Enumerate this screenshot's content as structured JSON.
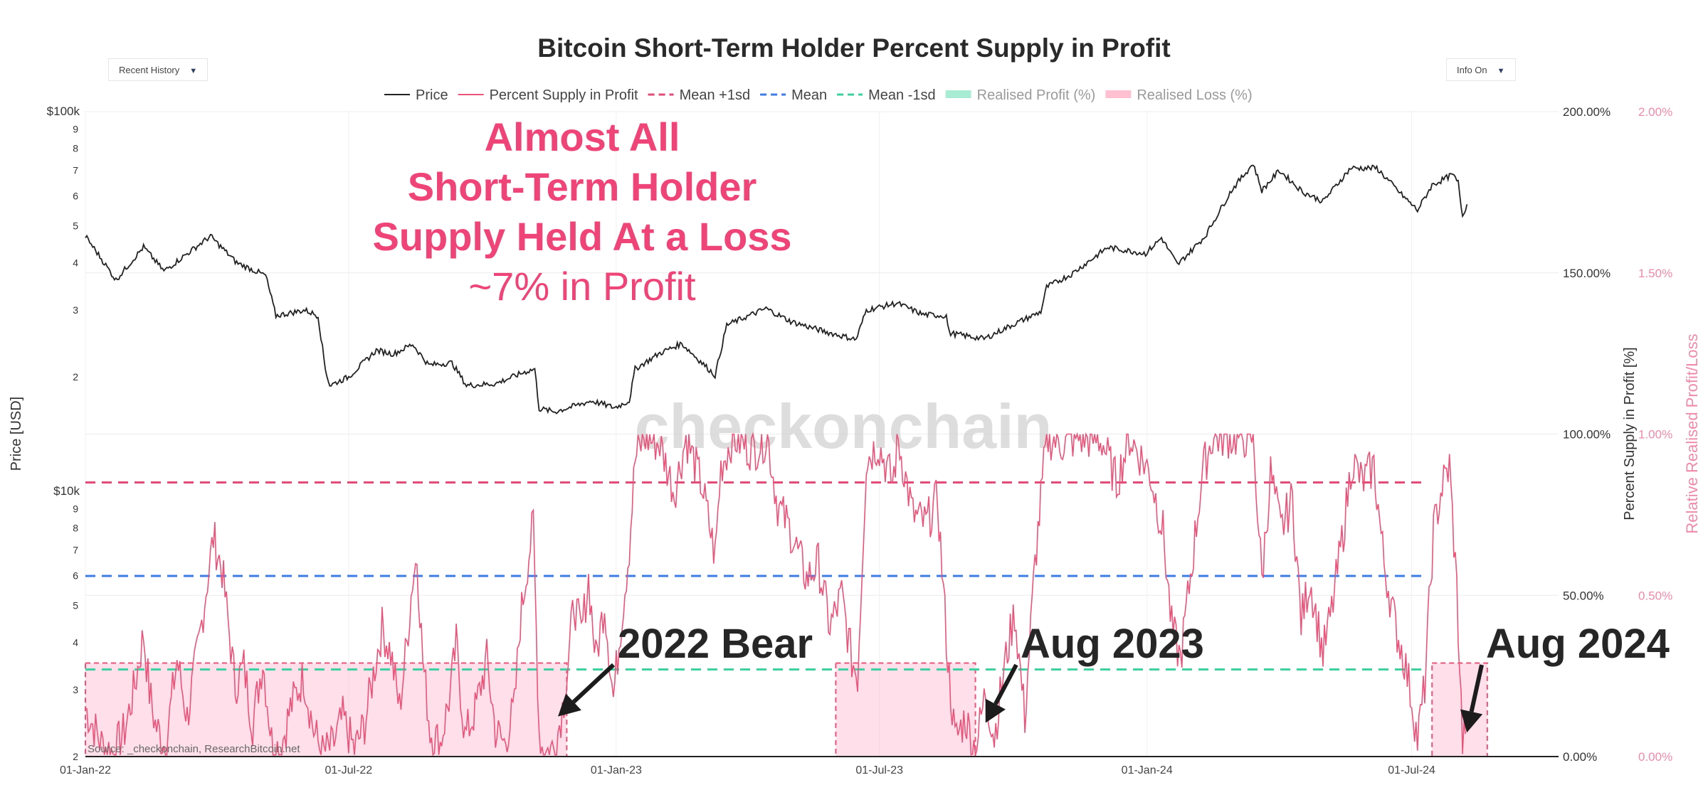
{
  "controls": {
    "left_dropdown": "Recent History",
    "right_dropdown": "Info On",
    "caret": "▼"
  },
  "source": "Source: _checkonchain, ResearchBitcoin.net",
  "watermark": "checkonchain",
  "annotations": {
    "headline": [
      "Almost All",
      "Short-Term Holder",
      "Supply Held At a Loss"
    ],
    "subline": "~7% in Profit",
    "labels": [
      {
        "text": "2022 Bear",
        "date": "2022-11-20",
        "value": 12
      },
      {
        "text": "Aug 2023",
        "date": "2023-09-10",
        "value": 10
      },
      {
        "text": "Aug 2024",
        "date": "2024-08-06",
        "value": 7
      }
    ]
  },
  "colors": {
    "price": "#222222",
    "profit": "#e8547a",
    "mean_plus": "#e24a78",
    "mean": "#3d7be6",
    "mean_minus": "#3fd0a0",
    "realised_profit": "#a9ecd4",
    "realised_loss": "#ffc1d2",
    "loss_box_fill": "rgba(255,160,190,0.32)",
    "headline": "#ee4477",
    "right_axis2": "#f08aaa"
  },
  "chart_data": {
    "type": "line",
    "title": "Bitcoin Short-Term Holder Percent Supply in Profit",
    "legend": [
      "Price",
      "Percent Supply in Profit",
      "Mean +1sd",
      "Mean",
      "Mean -1sd",
      "Realised Profit (%)",
      "Realised Loss (%)"
    ],
    "legend_position": "top-center",
    "x_ticks": [
      "01-Jan-22",
      "01-Jul-22",
      "01-Jan-23",
      "01-Jul-23",
      "01-Jan-24",
      "01-Jul-24"
    ],
    "x_range": [
      "2022-01-01",
      "2024-10-10"
    ],
    "y_left": {
      "label": "Price [USD]",
      "scale": "log",
      "range": [
        2000,
        100000
      ],
      "ticks": [
        {
          "v": 2000,
          "t": "2"
        },
        {
          "v": 3000,
          "t": "3"
        },
        {
          "v": 4000,
          "t": "4"
        },
        {
          "v": 5000,
          "t": "5"
        },
        {
          "v": 6000,
          "t": "6"
        },
        {
          "v": 7000,
          "t": "7"
        },
        {
          "v": 8000,
          "t": "8"
        },
        {
          "v": 9000,
          "t": "9"
        },
        {
          "v": 10000,
          "t": "$10k"
        },
        {
          "v": 20000,
          "t": "2"
        },
        {
          "v": 30000,
          "t": "3"
        },
        {
          "v": 40000,
          "t": "4"
        },
        {
          "v": 50000,
          "t": "5"
        },
        {
          "v": 60000,
          "t": "6"
        },
        {
          "v": 70000,
          "t": "7"
        },
        {
          "v": 80000,
          "t": "8"
        },
        {
          "v": 90000,
          "t": "9"
        },
        {
          "v": 100000,
          "t": "$100k"
        }
      ]
    },
    "y_right": {
      "label": "Percent Supply in Profit [%]",
      "range": [
        0,
        200
      ],
      "ticks": [
        "0.00%",
        "50.00%",
        "100.00%",
        "150.00%",
        "200.00%"
      ]
    },
    "y_right2": {
      "label": "Relative Realised Profit/Loss",
      "range": [
        0,
        2
      ],
      "ticks": [
        "0.00%",
        "0.50%",
        "1.00%",
        "1.50%",
        "2.00%"
      ]
    },
    "levels": {
      "mean_plus_1sd": 85,
      "mean": 56,
      "mean_minus_1sd": 27
    },
    "loss_zones": [
      {
        "start": "2022-01-01",
        "end": "2022-11-28",
        "value": 29
      },
      {
        "start": "2023-06-01",
        "end": "2023-09-05",
        "value": 29
      },
      {
        "start": "2024-07-15",
        "end": "2024-08-22",
        "value": 29
      }
    ],
    "series": [
      {
        "name": "Price",
        "points": [
          [
            "2022-01-01",
            47000
          ],
          [
            "2022-01-10",
            42000
          ],
          [
            "2022-01-22",
            36000
          ],
          [
            "2022-02-10",
            44000
          ],
          [
            "2022-02-24",
            38000
          ],
          [
            "2022-03-28",
            47000
          ],
          [
            "2022-04-15",
            40000
          ],
          [
            "2022-05-05",
            37000
          ],
          [
            "2022-05-12",
            29000
          ],
          [
            "2022-06-01",
            30000
          ],
          [
            "2022-06-10",
            29000
          ],
          [
            "2022-06-15",
            21000
          ],
          [
            "2022-06-18",
            19000
          ],
          [
            "2022-07-01",
            20000
          ],
          [
            "2022-07-20",
            23500
          ],
          [
            "2022-08-01",
            23000
          ],
          [
            "2022-08-14",
            24400
          ],
          [
            "2022-08-25",
            21500
          ],
          [
            "2022-09-10",
            21800
          ],
          [
            "2022-09-20",
            19000
          ],
          [
            "2022-10-10",
            19200
          ],
          [
            "2022-10-30",
            20600
          ],
          [
            "2022-11-06",
            21000
          ],
          [
            "2022-11-09",
            16500
          ],
          [
            "2022-11-20",
            16200
          ],
          [
            "2022-12-15",
            17300
          ],
          [
            "2022-12-31",
            16600
          ],
          [
            "2023-01-10",
            17300
          ],
          [
            "2023-01-14",
            21000
          ],
          [
            "2023-01-31",
            23100
          ],
          [
            "2023-02-15",
            24500
          ],
          [
            "2023-03-10",
            20200
          ],
          [
            "2023-03-18",
            27400
          ],
          [
            "2023-04-14",
            30300
          ],
          [
            "2023-05-01",
            28000
          ],
          [
            "2023-05-25",
            26300
          ],
          [
            "2023-06-15",
            25100
          ],
          [
            "2023-06-22",
            30000
          ],
          [
            "2023-07-13",
            31300
          ],
          [
            "2023-07-31",
            29200
          ],
          [
            "2023-08-16",
            29000
          ],
          [
            "2023-08-18",
            26100
          ],
          [
            "2023-09-11",
            25200
          ],
          [
            "2023-10-01",
            27500
          ],
          [
            "2023-10-20",
            29700
          ],
          [
            "2023-10-24",
            34500
          ],
          [
            "2023-11-10",
            37300
          ],
          [
            "2023-12-05",
            43900
          ],
          [
            "2023-12-31",
            42300
          ],
          [
            "2024-01-11",
            46500
          ],
          [
            "2024-01-22",
            39500
          ],
          [
            "2024-02-10",
            47000
          ],
          [
            "2024-02-28",
            62000
          ],
          [
            "2024-03-14",
            73000
          ],
          [
            "2024-03-20",
            62000
          ],
          [
            "2024-04-01",
            70000
          ],
          [
            "2024-04-17",
            61500
          ],
          [
            "2024-05-01",
            58000
          ],
          [
            "2024-05-20",
            71000
          ],
          [
            "2024-06-07",
            71000
          ],
          [
            "2024-06-24",
            60500
          ],
          [
            "2024-07-05",
            55000
          ],
          [
            "2024-07-15",
            64000
          ],
          [
            "2024-07-29",
            68200
          ],
          [
            "2024-08-02",
            65000
          ],
          [
            "2024-08-05",
            53000
          ],
          [
            "2024-08-08",
            57000
          ]
        ]
      },
      {
        "name": "Percent Supply in Profit",
        "points": [
          [
            "2022-01-01",
            15
          ],
          [
            "2022-01-12",
            4
          ],
          [
            "2022-01-20",
            1
          ],
          [
            "2022-01-28",
            8
          ],
          [
            "2022-02-04",
            22
          ],
          [
            "2022-02-10",
            38
          ],
          [
            "2022-02-14",
            20
          ],
          [
            "2022-02-18",
            10
          ],
          [
            "2022-02-25",
            3
          ],
          [
            "2022-03-05",
            30
          ],
          [
            "2022-03-12",
            12
          ],
          [
            "2022-03-20",
            35
          ],
          [
            "2022-03-26",
            55
          ],
          [
            "2022-03-30",
            68
          ],
          [
            "2022-04-05",
            58
          ],
          [
            "2022-04-10",
            38
          ],
          [
            "2022-04-14",
            22
          ],
          [
            "2022-04-20",
            28
          ],
          [
            "2022-04-26",
            10
          ],
          [
            "2022-05-03",
            30
          ],
          [
            "2022-05-09",
            5
          ],
          [
            "2022-05-15",
            2
          ],
          [
            "2022-05-22",
            15
          ],
          [
            "2022-05-31",
            25
          ],
          [
            "2022-06-07",
            8
          ],
          [
            "2022-06-13",
            1
          ],
          [
            "2022-06-20",
            3
          ],
          [
            "2022-06-27",
            12
          ],
          [
            "2022-07-05",
            2
          ],
          [
            "2022-07-12",
            10
          ],
          [
            "2022-07-19",
            28
          ],
          [
            "2022-07-24",
            40
          ],
          [
            "2022-07-30",
            32
          ],
          [
            "2022-08-05",
            15
          ],
          [
            "2022-08-10",
            35
          ],
          [
            "2022-08-14",
            55
          ],
          [
            "2022-08-17",
            62
          ],
          [
            "2022-08-21",
            30
          ],
          [
            "2022-08-26",
            8
          ],
          [
            "2022-09-02",
            4
          ],
          [
            "2022-09-09",
            20
          ],
          [
            "2022-09-13",
            35
          ],
          [
            "2022-09-19",
            6
          ],
          [
            "2022-09-26",
            14
          ],
          [
            "2022-10-04",
            30
          ],
          [
            "2022-10-10",
            8
          ],
          [
            "2022-10-16",
            4
          ],
          [
            "2022-10-23",
            15
          ],
          [
            "2022-10-27",
            42
          ],
          [
            "2022-11-01",
            60
          ],
          [
            "2022-11-05",
            72
          ],
          [
            "2022-11-09",
            8
          ],
          [
            "2022-11-12",
            1
          ],
          [
            "2022-11-20",
            3
          ],
          [
            "2022-11-27",
            20
          ],
          [
            "2022-12-03",
            48
          ],
          [
            "2022-12-08",
            38
          ],
          [
            "2022-12-13",
            55
          ],
          [
            "2022-12-18",
            30
          ],
          [
            "2022-12-24",
            48
          ],
          [
            "2022-12-30",
            18
          ],
          [
            "2023-01-04",
            40
          ],
          [
            "2023-01-10",
            65
          ],
          [
            "2023-01-14",
            92
          ],
          [
            "2023-01-20",
            99
          ],
          [
            "2023-01-31",
            97
          ],
          [
            "2023-02-10",
            82
          ],
          [
            "2023-02-18",
            99
          ],
          [
            "2023-03-01",
            84
          ],
          [
            "2023-03-10",
            62
          ],
          [
            "2023-03-14",
            90
          ],
          [
            "2023-03-22",
            99
          ],
          [
            "2023-04-05",
            95
          ],
          [
            "2023-04-15",
            99
          ],
          [
            "2023-04-22",
            78
          ],
          [
            "2023-05-01",
            70
          ],
          [
            "2023-05-12",
            55
          ],
          [
            "2023-05-20",
            60
          ],
          [
            "2023-05-28",
            40
          ],
          [
            "2023-06-05",
            50
          ],
          [
            "2023-06-12",
            30
          ],
          [
            "2023-06-16",
            25
          ],
          [
            "2023-06-22",
            92
          ],
          [
            "2023-06-30",
            97
          ],
          [
            "2023-07-10",
            85
          ],
          [
            "2023-07-14",
            98
          ],
          [
            "2023-07-24",
            75
          ],
          [
            "2023-08-02",
            72
          ],
          [
            "2023-08-10",
            80
          ],
          [
            "2023-08-17",
            30
          ],
          [
            "2023-08-22",
            5
          ],
          [
            "2023-08-29",
            12
          ],
          [
            "2023-09-05",
            2
          ],
          [
            "2023-09-12",
            20
          ],
          [
            "2023-09-18",
            6
          ],
          [
            "2023-09-25",
            28
          ],
          [
            "2023-10-02",
            45
          ],
          [
            "2023-10-09",
            12
          ],
          [
            "2023-10-16",
            60
          ],
          [
            "2023-10-24",
            99
          ],
          [
            "2023-11-05",
            97
          ],
          [
            "2023-11-15",
            99
          ],
          [
            "2023-12-01",
            98
          ],
          [
            "2023-12-11",
            85
          ],
          [
            "2023-12-20",
            99
          ],
          [
            "2024-01-03",
            88
          ],
          [
            "2024-01-12",
            70
          ],
          [
            "2024-01-18",
            40
          ],
          [
            "2024-01-24",
            30
          ],
          [
            "2024-02-01",
            60
          ],
          [
            "2024-02-08",
            88
          ],
          [
            "2024-02-15",
            99
          ],
          [
            "2024-03-05",
            99
          ],
          [
            "2024-03-14",
            99
          ],
          [
            "2024-03-20",
            55
          ],
          [
            "2024-03-26",
            88
          ],
          [
            "2024-04-02",
            70
          ],
          [
            "2024-04-10",
            80
          ],
          [
            "2024-04-16",
            42
          ],
          [
            "2024-04-22",
            55
          ],
          [
            "2024-05-01",
            32
          ],
          [
            "2024-05-07",
            45
          ],
          [
            "2024-05-15",
            70
          ],
          [
            "2024-05-21",
            92
          ],
          [
            "2024-05-28",
            85
          ],
          [
            "2024-06-05",
            90
          ],
          [
            "2024-06-12",
            60
          ],
          [
            "2024-06-20",
            40
          ],
          [
            "2024-06-26",
            30
          ],
          [
            "2024-07-01",
            18
          ],
          [
            "2024-07-05",
            5
          ],
          [
            "2024-07-10",
            22
          ],
          [
            "2024-07-16",
            70
          ],
          [
            "2024-07-22",
            84
          ],
          [
            "2024-07-27",
            90
          ],
          [
            "2024-08-01",
            52
          ],
          [
            "2024-08-05",
            4
          ],
          [
            "2024-08-07",
            7
          ]
        ]
      }
    ]
  }
}
